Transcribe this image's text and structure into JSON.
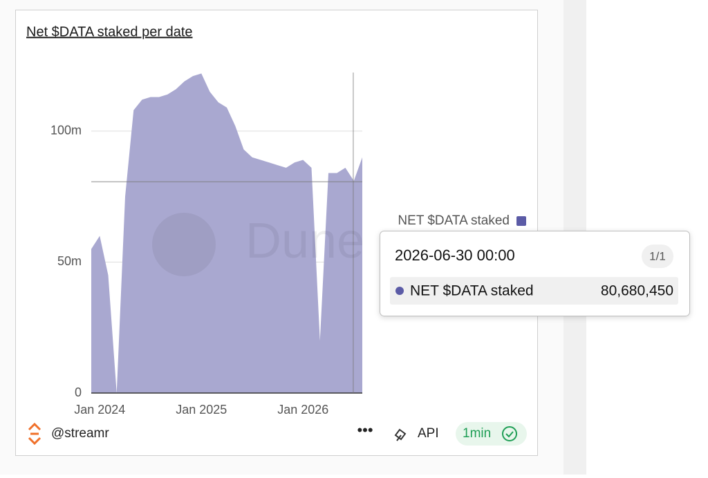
{
  "chart_data": {
    "type": "area",
    "title": "Net $DATA staked per date",
    "x": [
      "2023-12",
      "2024-01",
      "2024-02",
      "2024-03",
      "2024-04",
      "2024-05",
      "2024-06",
      "2024-07",
      "2024-08",
      "2024-09",
      "2024-10",
      "2024-11",
      "2024-12",
      "2025-01",
      "2025-02",
      "2025-03",
      "2025-04",
      "2025-05",
      "2025-06",
      "2025-07",
      "2025-08",
      "2025-09",
      "2025-10",
      "2025-11",
      "2025-12",
      "2026-01",
      "2026-02",
      "2026-03",
      "2026-04",
      "2026-05",
      "2026-06",
      "2026-07",
      "2026-08"
    ],
    "series": [
      {
        "name": "NET $DATA staked",
        "color": "#a9a8d0",
        "legend_color": "#5b5ba6",
        "values": [
          55000000,
          60000000,
          45000000,
          0,
          75000000,
          108000000,
          112000000,
          113000000,
          113000000,
          114000000,
          116000000,
          119000000,
          121000000,
          122000000,
          115000000,
          111000000,
          109000000,
          102000000,
          93000000,
          90000000,
          89000000,
          88000000,
          87000000,
          86000000,
          88000000,
          89000000,
          86000000,
          20000000,
          84000000,
          84000000,
          86000000,
          81000000,
          90000000
        ]
      }
    ],
    "xlim": [
      "2023-12",
      "2026-08"
    ],
    "xticks": [
      {
        "value": "2024-01",
        "label": "Jan 2024"
      },
      {
        "value": "2025-01",
        "label": "Jan 2025"
      },
      {
        "value": "2026-01",
        "label": "Jan 2026"
      }
    ],
    "ylim": [
      0,
      125000000
    ],
    "yticks": [
      {
        "value": 0,
        "label": "0"
      },
      {
        "value": 50000000,
        "label": "50m"
      },
      {
        "value": 100000000,
        "label": "100m"
      }
    ],
    "grid": true,
    "watermark": "Dune",
    "tooltip": {
      "date": "2026-06-30 00:00",
      "page": "1/1",
      "value": 80680450,
      "value_label": "80,680,450"
    }
  },
  "footer": {
    "author": "@streamr",
    "api": "API",
    "refresh": "1min"
  }
}
